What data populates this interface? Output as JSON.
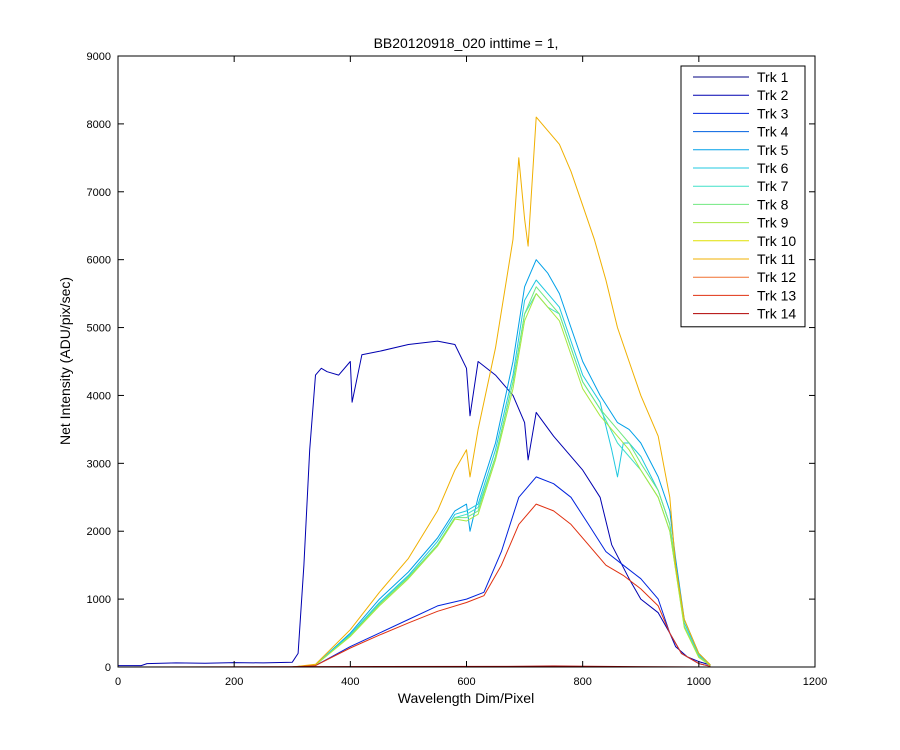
{
  "chart_data": {
    "type": "line",
    "title": "BB20120918_020 inttime = 1,",
    "xlabel": "Wavelength Dim/Pixel",
    "ylabel": "Net Intensity (ADU/pix/sec)",
    "xlim": [
      0,
      1200
    ],
    "ylim": [
      0,
      9000
    ],
    "xticks": [
      0,
      200,
      400,
      600,
      800,
      1000,
      1200
    ],
    "yticks": [
      0,
      1000,
      2000,
      3000,
      4000,
      5000,
      6000,
      7000,
      8000,
      9000
    ],
    "grid": false,
    "legend_position": "top-right",
    "series": [
      {
        "name": "Trk 1",
        "color": "#000080",
        "x": [
          0,
          330
        ],
        "y": [
          0,
          0
        ]
      },
      {
        "name": "Trk 2",
        "color": "#0000b0",
        "x": [
          0,
          40,
          50,
          100,
          150,
          200,
          250,
          300,
          310,
          320,
          330,
          340,
          350,
          360,
          380,
          400,
          403,
          420,
          450,
          500,
          550,
          580,
          600,
          606,
          620,
          650,
          680,
          700,
          706,
          720,
          750,
          800,
          830,
          850,
          880,
          900,
          930,
          950,
          960,
          980,
          1000,
          1020
        ],
        "y": [
          20,
          20,
          50,
          60,
          55,
          65,
          60,
          70,
          200,
          1500,
          3200,
          4300,
          4400,
          4350,
          4300,
          4500,
          3900,
          4600,
          4650,
          4750,
          4800,
          4750,
          4400,
          3700,
          4500,
          4300,
          4000,
          3600,
          3050,
          3750,
          3400,
          2900,
          2500,
          1800,
          1300,
          1000,
          800,
          500,
          300,
          150,
          80,
          30
        ]
      },
      {
        "name": "Trk 3",
        "color": "#0022dd",
        "x": [
          0,
          300,
          340,
          400,
          450,
          500,
          550,
          600,
          630,
          660,
          690,
          720,
          750,
          780,
          810,
          840,
          870,
          900,
          930,
          950,
          970,
          1000,
          1020
        ],
        "y": [
          0,
          0,
          20,
          300,
          500,
          700,
          900,
          1000,
          1100,
          1700,
          2500,
          2800,
          2700,
          2500,
          2100,
          1700,
          1500,
          1300,
          1000,
          500,
          200,
          50,
          10
        ]
      },
      {
        "name": "Trk 4",
        "color": "#0060e0",
        "x": [
          0,
          1020
        ],
        "y": [
          0,
          0
        ]
      },
      {
        "name": "Trk 5",
        "color": "#00a0e8",
        "x": [
          0,
          300,
          340,
          400,
          450,
          500,
          550,
          580,
          600,
          606,
          620,
          650,
          680,
          700,
          720,
          740,
          760,
          780,
          800,
          830,
          860,
          880,
          900,
          930,
          950,
          960,
          975,
          1000,
          1020
        ],
        "y": [
          0,
          0,
          30,
          500,
          1000,
          1400,
          1900,
          2300,
          2400,
          2000,
          2500,
          3300,
          4500,
          5600,
          6000,
          5800,
          5500,
          5000,
          4500,
          4000,
          3600,
          3500,
          3300,
          2800,
          2300,
          1600,
          700,
          200,
          30
        ]
      },
      {
        "name": "Trk 6",
        "color": "#20c8e0",
        "x": [
          0,
          300,
          340,
          400,
          450,
          500,
          550,
          580,
          600,
          620,
          650,
          680,
          700,
          720,
          740,
          760,
          780,
          800,
          830,
          850,
          860,
          870,
          880,
          900,
          930,
          950,
          960,
          975,
          1000,
          1020
        ],
        "y": [
          0,
          0,
          30,
          480,
          950,
          1350,
          1850,
          2250,
          2300,
          2400,
          3200,
          4300,
          5400,
          5700,
          5500,
          5300,
          4800,
          4300,
          3900,
          3200,
          2800,
          3300,
          3300,
          3100,
          2600,
          2100,
          1500,
          650,
          180,
          25
        ]
      },
      {
        "name": "Trk 7",
        "color": "#40e0c8",
        "x": [
          0,
          300,
          340,
          400,
          450,
          500,
          550,
          580,
          600,
          620,
          650,
          680,
          700,
          720,
          740,
          760,
          780,
          800,
          830,
          860,
          880,
          900,
          930,
          950,
          975,
          1000,
          1020
        ],
        "y": [
          0,
          0,
          30,
          470,
          930,
          1330,
          1800,
          2200,
          2250,
          2350,
          3100,
          4200,
          5200,
          5500,
          5300,
          5200,
          4700,
          4200,
          3800,
          3300,
          3100,
          2900,
          2500,
          2000,
          600,
          160,
          20
        ]
      },
      {
        "name": "Trk 8",
        "color": "#70e880",
        "x": [
          0,
          300,
          340,
          400,
          450,
          500,
          550,
          580,
          600,
          620,
          650,
          680,
          700,
          720,
          740,
          760,
          780,
          800,
          830,
          860,
          880,
          900,
          930,
          950,
          975,
          1000,
          1020
        ],
        "y": [
          0,
          0,
          30,
          460,
          920,
          1320,
          1800,
          2200,
          2200,
          2300,
          3100,
          4200,
          5200,
          5600,
          5400,
          5200,
          4700,
          4200,
          3800,
          3500,
          3300,
          3000,
          2600,
          2100,
          600,
          150,
          20
        ]
      },
      {
        "name": "Trk 9",
        "color": "#a8e840",
        "x": [
          0,
          300,
          340,
          400,
          450,
          500,
          550,
          580,
          600,
          620,
          650,
          680,
          700,
          720,
          740,
          760,
          780,
          800,
          830,
          860,
          880,
          900,
          930,
          950,
          975,
          1000,
          1020
        ],
        "y": [
          0,
          0,
          30,
          450,
          900,
          1300,
          1780,
          2180,
          2150,
          2250,
          3050,
          4100,
          5100,
          5500,
          5300,
          5100,
          4600,
          4100,
          3700,
          3400,
          3200,
          2900,
          2500,
          2000,
          580,
          140,
          20
        ]
      },
      {
        "name": "Trk 10",
        "color": "#e0e000",
        "x": [
          0,
          1020
        ],
        "y": [
          0,
          0
        ]
      },
      {
        "name": "Trk 11",
        "color": "#f0b000",
        "x": [
          0,
          300,
          340,
          400,
          450,
          500,
          550,
          580,
          600,
          606,
          620,
          650,
          680,
          690,
          700,
          706,
          720,
          740,
          760,
          780,
          800,
          820,
          840,
          860,
          880,
          900,
          930,
          950,
          960,
          975,
          1000,
          1020
        ],
        "y": [
          0,
          0,
          40,
          550,
          1100,
          1600,
          2300,
          2900,
          3200,
          2800,
          3500,
          4700,
          6300,
          7500,
          6600,
          6200,
          8100,
          7900,
          7700,
          7300,
          6800,
          6300,
          5700,
          5000,
          4500,
          4000,
          3400,
          2500,
          1500,
          700,
          200,
          30
        ]
      },
      {
        "name": "Trk 12",
        "color": "#f07030",
        "x": [
          0,
          1020
        ],
        "y": [
          0,
          0
        ]
      },
      {
        "name": "Trk 13",
        "color": "#e03010",
        "x": [
          0,
          300,
          340,
          400,
          450,
          500,
          550,
          600,
          630,
          660,
          690,
          720,
          750,
          780,
          810,
          840,
          870,
          900,
          930,
          950,
          970,
          1000,
          1020
        ],
        "y": [
          0,
          0,
          20,
          280,
          470,
          650,
          820,
          950,
          1050,
          1500,
          2100,
          2400,
          2300,
          2100,
          1800,
          1500,
          1350,
          1150,
          900,
          500,
          200,
          50,
          10
        ]
      },
      {
        "name": "Trk 14",
        "color": "#b00000",
        "x": [
          0,
          700,
          750,
          800,
          1020
        ],
        "y": [
          0,
          10,
          15,
          10,
          0
        ]
      }
    ]
  }
}
